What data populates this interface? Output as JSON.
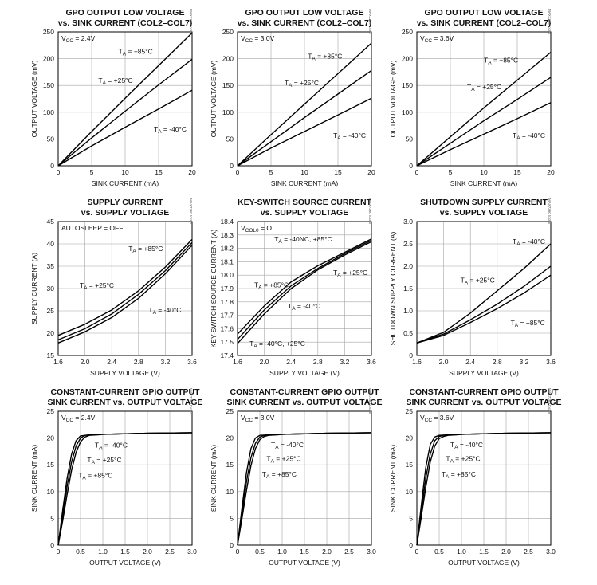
{
  "chart_data": [
    {
      "type": "line",
      "title": [
        "GPO OUTPUT LOW VOLTAGE",
        "vs. SINK CURRENT (COL2–COL7)"
      ],
      "xlabel": "SINK CURRENT (mA)",
      "ylabel": "OUTPUT VOLTAGE (mV)",
      "xlim": [
        0,
        20
      ],
      "ylim": [
        0,
        250
      ],
      "xticks": [
        "0",
        "5",
        "10",
        "15",
        "20"
      ],
      "yticks": [
        "0",
        "50",
        "100",
        "150",
        "200",
        "250"
      ],
      "note": "VCC = 2.4V",
      "side_id": "MAX7360 toc01",
      "series": [
        {
          "name": "TA = +85°C",
          "x": [
            0,
            5,
            10,
            15,
            20
          ],
          "y": [
            0,
            64,
            126,
            187,
            248
          ]
        },
        {
          "name": "TA = +25°C",
          "x": [
            0,
            5,
            10,
            15,
            20
          ],
          "y": [
            0,
            52,
            102,
            151,
            199
          ]
        },
        {
          "name": "TA = -40°C",
          "x": [
            0,
            5,
            10,
            15,
            20
          ],
          "y": [
            0,
            37,
            72,
            106,
            141
          ]
        }
      ],
      "annotations": [
        {
          "text": "TA = +85°C",
          "x": 9.0,
          "y": 209
        },
        {
          "text": "TA = +25°C",
          "x": 6.0,
          "y": 155
        },
        {
          "text": "TA = -40°C",
          "x": 15.0,
          "y": 64
        }
      ]
    },
    {
      "type": "line",
      "title": [
        "GPO OUTPUT LOW VOLTAGE",
        "vs. SINK CURRENT (COL2–COL7)"
      ],
      "xlabel": "SINK CURRENT (mA)",
      "ylabel": "OUTPUT VOLTAGE (mV)",
      "xlim": [
        0,
        20
      ],
      "ylim": [
        0,
        250
      ],
      "xticks": [
        "0",
        "5",
        "10",
        "15",
        "20"
      ],
      "yticks": [
        "0",
        "50",
        "100",
        "150",
        "200",
        "250"
      ],
      "note": "VCC = 3.0V",
      "side_id": "MAX7360 toc02",
      "series": [
        {
          "name": "TA = +85°C",
          "x": [
            0,
            5,
            10,
            15,
            20
          ],
          "y": [
            0,
            58,
            115,
            172,
            229
          ]
        },
        {
          "name": "TA = +25°C",
          "x": [
            0,
            5,
            10,
            15,
            20
          ],
          "y": [
            0,
            45,
            90,
            134,
            178
          ]
        },
        {
          "name": "TA = -40°C",
          "x": [
            0,
            5,
            10,
            15,
            20
          ],
          "y": [
            0,
            33,
            64,
            95,
            126
          ]
        }
      ],
      "annotations": [
        {
          "text": "TA = +85°C",
          "x": 10.5,
          "y": 200
        },
        {
          "text": "TA = +25°C",
          "x": 7.0,
          "y": 150
        },
        {
          "text": "TA = -40°C",
          "x": 16.0,
          "y": 52
        }
      ]
    },
    {
      "type": "line",
      "title": [
        "GPO OUTPUT LOW VOLTAGE",
        "vs. SINK CURRENT (COL2–COL7)"
      ],
      "xlabel": "SINK CURRENT (mA)",
      "ylabel": "OUTPUT VOLTAGE (mV)",
      "xlim": [
        0,
        20
      ],
      "ylim": [
        0,
        250
      ],
      "xticks": [
        "0",
        "5",
        "10",
        "15",
        "20"
      ],
      "yticks": [
        "0",
        "50",
        "100",
        "150",
        "200",
        "250"
      ],
      "note": "VCC = 3.6V",
      "side_id": "MAX7360 toc03",
      "series": [
        {
          "name": "TA = +85°C",
          "x": [
            0,
            5,
            10,
            15,
            20
          ],
          "y": [
            0,
            54,
            108,
            160,
            212
          ]
        },
        {
          "name": "TA = +25°C",
          "x": [
            0,
            5,
            10,
            15,
            20
          ],
          "y": [
            0,
            42,
            84,
            124,
            165
          ]
        },
        {
          "name": "TA = -40°C",
          "x": [
            0,
            5,
            10,
            15,
            20
          ],
          "y": [
            0,
            30,
            59,
            88,
            118
          ]
        }
      ],
      "annotations": [
        {
          "text": "TA = +85°C",
          "x": 10.0,
          "y": 193
        },
        {
          "text": "TA = +25°C",
          "x": 7.5,
          "y": 143
        },
        {
          "text": "TA = -40°C",
          "x": 15.5,
          "y": 52
        }
      ]
    },
    {
      "type": "line",
      "title": [
        "SUPPLY CURRENT",
        "vs. SUPPLY VOLTAGE"
      ],
      "xlabel": "SUPPLY VOLTAGE (V)",
      "ylabel": "SUPPLY CURRENT (A)",
      "xlim": [
        1.6,
        3.6
      ],
      "ylim": [
        15,
        45
      ],
      "xticks": [
        "1.6",
        "2.0",
        "2.4",
        "2.8",
        "3.2",
        "3.6"
      ],
      "yticks": [
        "15",
        "20",
        "25",
        "30",
        "35",
        "40",
        "45"
      ],
      "note": "AUTOSLEEP = OFF",
      "side_id": "MAX7360 toc04",
      "series": [
        {
          "name": "TA = +85°C",
          "x": [
            1.6,
            2.0,
            2.4,
            2.8,
            3.2,
            3.6
          ],
          "y": [
            19.5,
            22.0,
            25.2,
            29.5,
            34.8,
            41.0
          ]
        },
        {
          "name": "TA = +25°C",
          "x": [
            1.6,
            2.0,
            2.4,
            2.8,
            3.2,
            3.6
          ],
          "y": [
            18.5,
            21.0,
            24.3,
            28.7,
            34.0,
            40.3
          ]
        },
        {
          "name": "TA = -40°C",
          "x": [
            1.6,
            2.0,
            2.4,
            2.8,
            3.2,
            3.6
          ],
          "y": [
            17.8,
            20.3,
            23.5,
            27.8,
            33.3,
            39.7
          ]
        }
      ],
      "annotations": [
        {
          "text": "TA = +85°C",
          "x": 2.65,
          "y": 38.4
        },
        {
          "text": "TA = +25°C",
          "x": 1.92,
          "y": 30.2
        },
        {
          "text": "TA = -40°C",
          "x": 2.95,
          "y": 24.6
        }
      ]
    },
    {
      "type": "line",
      "title": [
        "KEY-SWITCH SOURCE CURRENT",
        "vs. SUPPLY VOLTAGE"
      ],
      "xlabel": "SUPPLY VOLTAGE (V)",
      "ylabel": "KEY-SWITCH SOURCE CURRENT (A)",
      "xlim": [
        1.6,
        3.6
      ],
      "ylim": [
        17.4,
        18.4
      ],
      "xticks": [
        "1.6",
        "2.0",
        "2.4",
        "2.8",
        "3.2",
        "3.6"
      ],
      "yticks": [
        "17.4",
        "17.5",
        "17.6",
        "17.7",
        "17.8",
        "17.9",
        "18.0",
        "18.1",
        "18.2",
        "18.3",
        "18.4"
      ],
      "note": "VCOL0 = O",
      "side_id": "MAX7360 toc05",
      "series": [
        {
          "name": "TA = -40NC, +85°C",
          "x": [
            1.6,
            2.0,
            2.4,
            2.8,
            3.2,
            3.6
          ],
          "y": [
            17.56,
            17.77,
            17.95,
            18.07,
            18.17,
            18.27
          ]
        },
        {
          "name": "TA = +25°C",
          "x": [
            1.6,
            2.0,
            2.4,
            2.8,
            3.2,
            3.6
          ],
          "y": [
            17.52,
            17.74,
            17.92,
            18.05,
            18.16,
            18.26
          ]
        },
        {
          "name": "TA = -40°C, +25°C",
          "x": [
            1.6,
            2.0,
            2.4,
            2.8,
            3.2,
            3.6
          ],
          "y": [
            17.49,
            17.71,
            17.9,
            18.04,
            18.15,
            18.25
          ]
        }
      ],
      "annotations": [
        {
          "text": "TA = -40NC, +85°C",
          "x": 2.15,
          "y": 18.25
        },
        {
          "text": "TA = +25°C",
          "x": 3.1,
          "y": 18.0
        },
        {
          "text": "TA = +85°C",
          "x": 1.85,
          "y": 17.91
        },
        {
          "text": "TA = -40°C",
          "x": 2.35,
          "y": 17.75
        },
        {
          "text": "TA = -40°C, +25°C",
          "x": 1.78,
          "y": 17.47
        }
      ]
    },
    {
      "type": "line",
      "title": [
        "SHUTDOWN SUPPLY CURRENT",
        "vs. SUPPLY VOLTAGE"
      ],
      "xlabel": "SUPPLY VOLTAGE (V)",
      "ylabel": "SHUTDOWN SUPPLY CURRENT (A)",
      "xlim": [
        1.6,
        3.6
      ],
      "ylim": [
        0,
        3.0
      ],
      "xticks": [
        "1.6",
        "2.0",
        "2.4",
        "2.8",
        "3.2",
        "3.6"
      ],
      "yticks": [
        "0",
        "0.5",
        "1.0",
        "1.5",
        "2.0",
        "2.5",
        "3.0"
      ],
      "note": "",
      "side_id": "MAX7360 toc06",
      "series": [
        {
          "name": "TA = -40°C",
          "x": [
            1.6,
            2.0,
            2.4,
            2.8,
            3.2,
            3.6
          ],
          "y": [
            0.28,
            0.52,
            0.95,
            1.45,
            1.95,
            2.5
          ]
        },
        {
          "name": "TA = +25°C",
          "x": [
            1.6,
            2.0,
            2.4,
            2.8,
            3.2,
            3.6
          ],
          "y": [
            0.28,
            0.48,
            0.8,
            1.15,
            1.55,
            2.0
          ]
        },
        {
          "name": "TA = +85°C",
          "x": [
            1.6,
            2.0,
            2.4,
            2.8,
            3.2,
            3.6
          ],
          "y": [
            0.28,
            0.45,
            0.74,
            1.05,
            1.4,
            1.8
          ]
        }
      ],
      "annotations": [
        {
          "text": "TA = -40°C",
          "x": 3.05,
          "y": 2.5
        },
        {
          "text": "TA = +25°C",
          "x": 2.25,
          "y": 1.63
        },
        {
          "text": "TA = +85°C",
          "x": 3.0,
          "y": 0.68
        }
      ]
    },
    {
      "type": "line",
      "title": [
        "CONSTANT-CURRENT GPIO OUTPUT",
        "SINK CURRENT vs. OUTPUT VOLTAGE"
      ],
      "xlabel": "OUTPUT VOLTAGE (V)",
      "ylabel": "SINK CURRENT (mA)",
      "xlim": [
        0,
        3.0
      ],
      "ylim": [
        0,
        25
      ],
      "xticks": [
        "0",
        "0.5",
        "1.0",
        "1.5",
        "2.0",
        "2.5",
        "3.0"
      ],
      "yticks": [
        "0",
        "5",
        "10",
        "15",
        "20",
        "25"
      ],
      "note": "VCC = 2.4V",
      "side_id": "MAX7360 toc07",
      "series": [
        {
          "name": "TA = -40°C",
          "x": [
            0,
            0.1,
            0.2,
            0.3,
            0.4,
            0.5,
            0.7,
            1.0,
            2.0,
            3.0
          ],
          "y": [
            0,
            6.5,
            12.5,
            17.0,
            19.5,
            20.4,
            20.6,
            20.7,
            20.9,
            21.0
          ]
        },
        {
          "name": "TA = +25°C",
          "x": [
            0,
            0.1,
            0.2,
            0.3,
            0.4,
            0.5,
            0.6,
            0.8,
            1.0,
            2.0,
            3.0
          ],
          "y": [
            0,
            5.5,
            11.0,
            15.5,
            18.5,
            20.0,
            20.5,
            20.6,
            20.7,
            20.9,
            21.0
          ]
        },
        {
          "name": "TA = +85°C",
          "x": [
            0,
            0.1,
            0.2,
            0.3,
            0.4,
            0.5,
            0.6,
            0.7,
            0.9,
            1.0,
            2.0,
            3.0
          ],
          "y": [
            0,
            4.5,
            9.5,
            14.0,
            17.3,
            19.3,
            20.2,
            20.5,
            20.6,
            20.7,
            20.9,
            21.0
          ]
        }
      ],
      "annotations": [
        {
          "text": "TA = -40°C",
          "x": 0.82,
          "y": 18.2
        },
        {
          "text": "TA = +25°C",
          "x": 0.65,
          "y": 15.5
        },
        {
          "text": "TA = +85°C",
          "x": 0.45,
          "y": 12.6
        }
      ]
    },
    {
      "type": "line",
      "title": [
        "CONSTANT-CURRENT GPIO OUTPUT",
        "SINK CURRENT vs. OUTPUT VOLTAGE"
      ],
      "xlabel": "OUTPUT VOLTAGE (V)",
      "ylabel": "SINK CURRENT (mA)",
      "xlim": [
        0,
        3.0
      ],
      "ylim": [
        0,
        25
      ],
      "xticks": [
        "0",
        "0.5",
        "1.0",
        "1.5",
        "2.0",
        "2.5",
        "3.0"
      ],
      "yticks": [
        "0",
        "5",
        "10",
        "15",
        "20",
        "25"
      ],
      "note": "VCC = 3.0V",
      "side_id": "MAX7360 toc08",
      "series": [
        {
          "name": "TA = -40°C",
          "x": [
            0,
            0.1,
            0.2,
            0.3,
            0.4,
            0.5,
            0.7,
            1.0,
            2.0,
            3.0
          ],
          "y": [
            0,
            7.0,
            13.5,
            18.0,
            20.0,
            20.5,
            20.6,
            20.7,
            20.9,
            21.0
          ]
        },
        {
          "name": "TA = +25°C",
          "x": [
            0,
            0.1,
            0.2,
            0.3,
            0.4,
            0.5,
            0.6,
            0.8,
            1.0,
            2.0,
            3.0
          ],
          "y": [
            0,
            6.0,
            11.8,
            16.3,
            19.0,
            20.2,
            20.5,
            20.6,
            20.7,
            20.9,
            21.0
          ]
        },
        {
          "name": "TA = +85°C",
          "x": [
            0,
            0.1,
            0.2,
            0.3,
            0.4,
            0.5,
            0.6,
            0.7,
            0.9,
            1.0,
            2.0,
            3.0
          ],
          "y": [
            0,
            5.0,
            10.2,
            14.8,
            18.0,
            19.7,
            20.3,
            20.5,
            20.6,
            20.7,
            20.9,
            21.0
          ]
        }
      ],
      "annotations": [
        {
          "text": "TA = -40°C",
          "x": 0.75,
          "y": 18.3
        },
        {
          "text": "TA = +25°C",
          "x": 0.65,
          "y": 15.7
        },
        {
          "text": "TA = +85°C",
          "x": 0.55,
          "y": 12.8
        }
      ]
    },
    {
      "type": "line",
      "title": [
        "CONSTANT-CURRENT GPIO OUTPUT",
        "SINK CURRENT vs. OUTPUT VOLTAGE"
      ],
      "xlabel": "OUTPUT VOLTAGE (V)",
      "ylabel": "SINK CURRENT (mA)",
      "xlim": [
        0,
        3.0
      ],
      "ylim": [
        0,
        25
      ],
      "xticks": [
        "0",
        "0.5",
        "1.0",
        "1.5",
        "2.0",
        "2.5",
        "3.0"
      ],
      "yticks": [
        "0",
        "5",
        "10",
        "15",
        "20",
        "25"
      ],
      "note": "VCC = 3.6V",
      "side_id": "MAX7360 toc09",
      "series": [
        {
          "name": "TA = -40°C",
          "x": [
            0,
            0.1,
            0.2,
            0.3,
            0.4,
            0.5,
            0.7,
            1.0,
            2.0,
            3.0
          ],
          "y": [
            0,
            7.5,
            14.5,
            18.8,
            20.2,
            20.5,
            20.6,
            20.7,
            20.9,
            21.0
          ]
        },
        {
          "name": "TA = +25°C",
          "x": [
            0,
            0.1,
            0.2,
            0.3,
            0.4,
            0.5,
            0.6,
            0.8,
            1.0,
            2.0,
            3.0
          ],
          "y": [
            0,
            6.3,
            12.5,
            17.0,
            19.5,
            20.3,
            20.5,
            20.6,
            20.7,
            20.9,
            21.0
          ]
        },
        {
          "name": "TA = +85°C",
          "x": [
            0,
            0.1,
            0.2,
            0.3,
            0.4,
            0.5,
            0.6,
            0.7,
            0.9,
            1.0,
            2.0,
            3.0
          ],
          "y": [
            0,
            5.3,
            10.8,
            15.5,
            18.5,
            19.9,
            20.3,
            20.5,
            20.6,
            20.7,
            20.9,
            21.0
          ]
        }
      ],
      "annotations": [
        {
          "text": "TA = -40°C",
          "x": 0.75,
          "y": 18.3
        },
        {
          "text": "TA = +25°C",
          "x": 0.65,
          "y": 15.7
        },
        {
          "text": "TA = +85°C",
          "x": 0.55,
          "y": 12.8
        }
      ]
    }
  ]
}
